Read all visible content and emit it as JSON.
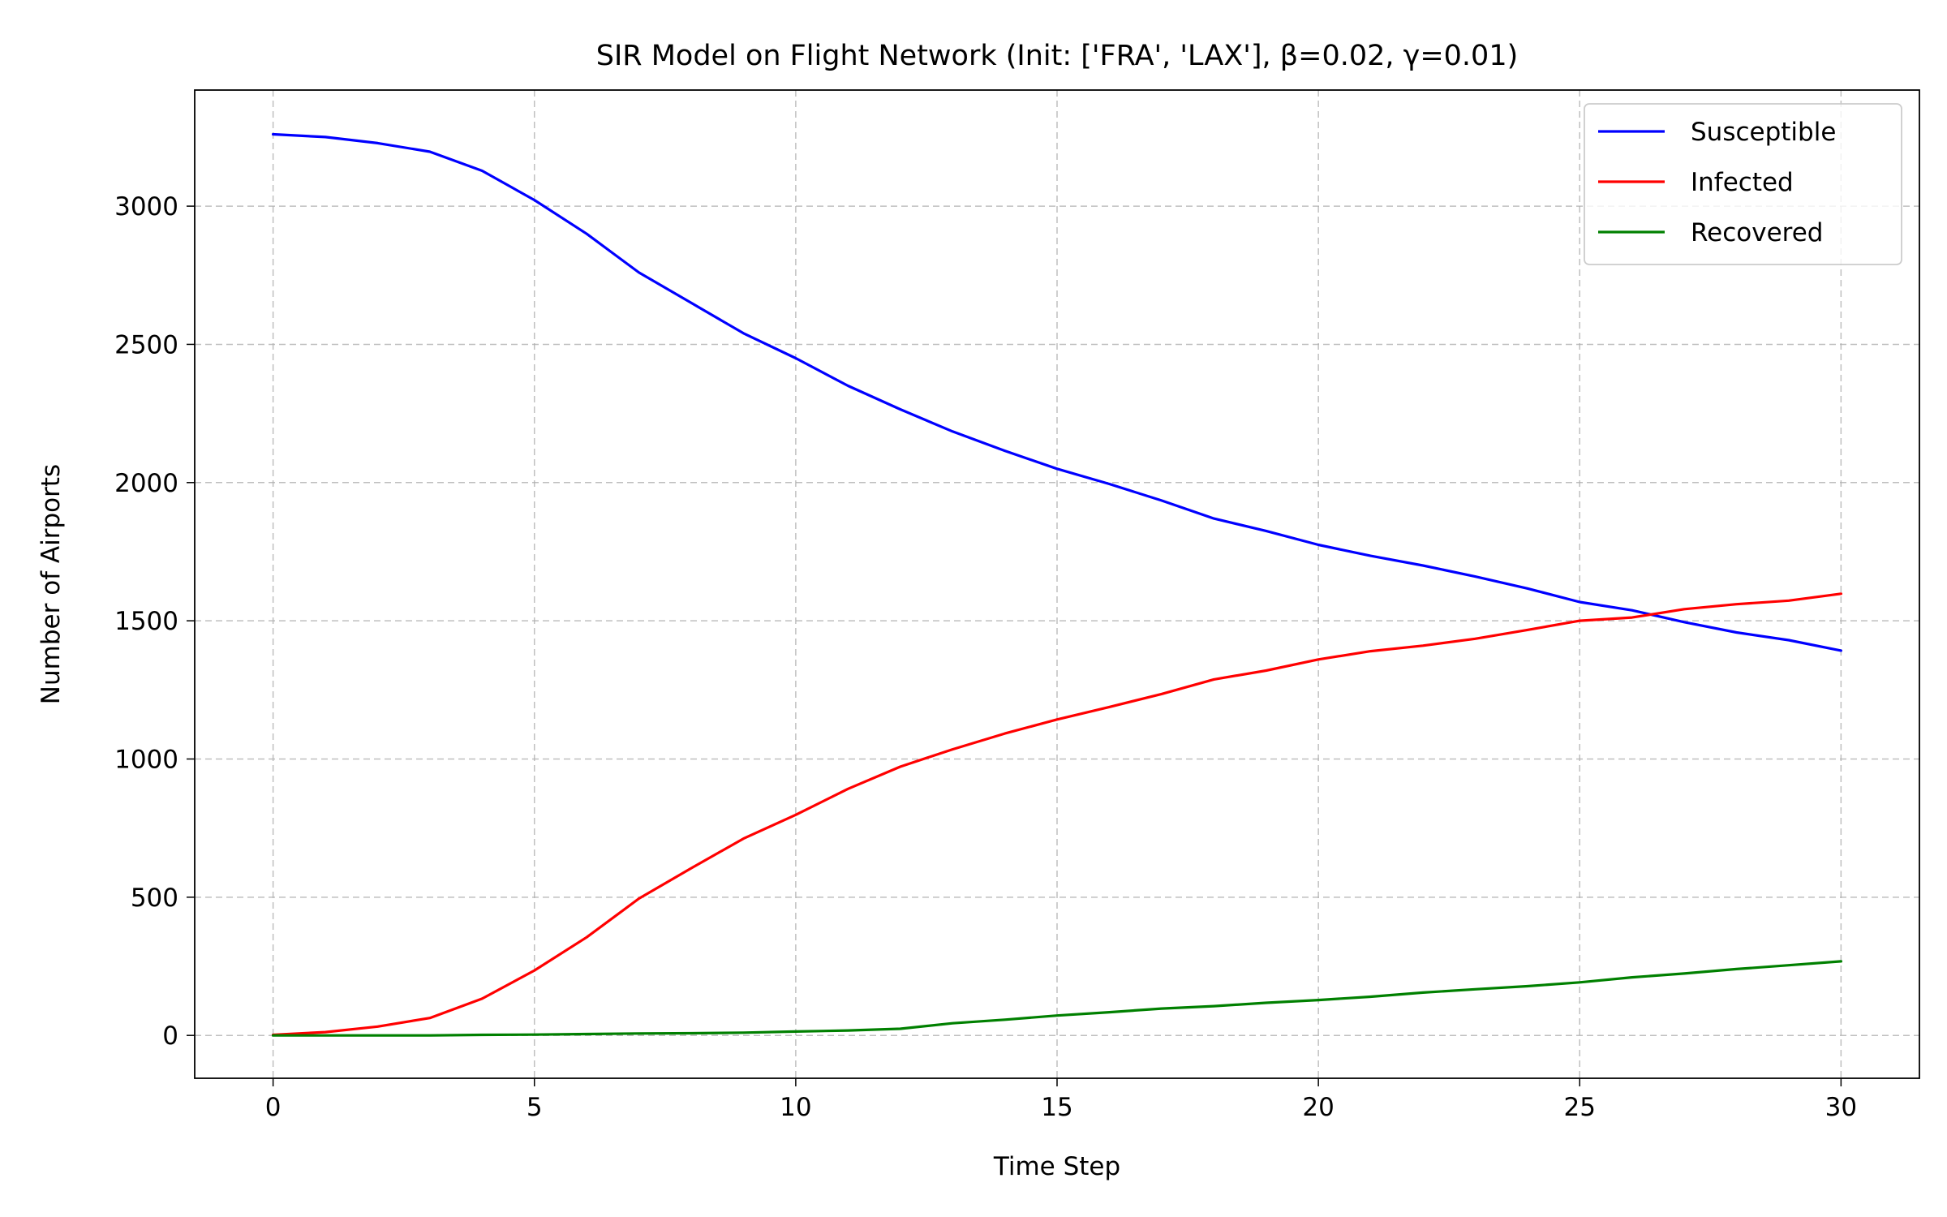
{
  "chart_data": {
    "type": "line",
    "title": "SIR Model on Flight Network (Init: ['FRA', 'LAX'], β=0.02, γ=0.01)",
    "xlabel": "Time Step",
    "ylabel": "Number of Airports",
    "xlim": [
      -1.5,
      31.5
    ],
    "ylim": [
      -155,
      3420
    ],
    "xticks": [
      0,
      5,
      10,
      15,
      20,
      25,
      30
    ],
    "yticks": [
      0,
      500,
      1000,
      1500,
      2000,
      2500,
      3000
    ],
    "grid": true,
    "legend_position": "top-right",
    "x": [
      0,
      1,
      2,
      3,
      4,
      5,
      6,
      7,
      8,
      9,
      10,
      11,
      12,
      13,
      14,
      15,
      16,
      17,
      18,
      19,
      20,
      21,
      22,
      23,
      24,
      25,
      26,
      27,
      28,
      29,
      30
    ],
    "series": [
      {
        "name": "Susceptible",
        "color": "#0000ff",
        "values": [
          3260,
          3250,
          3228,
          3197,
          3128,
          3022,
          2900,
          2760,
          2650,
          2540,
          2450,
          2350,
          2265,
          2185,
          2115,
          2050,
          1995,
          1935,
          1870,
          1825,
          1775,
          1735,
          1700,
          1660,
          1617,
          1568,
          1538,
          1495,
          1458,
          1430,
          1392
        ]
      },
      {
        "name": "Infected",
        "color": "#ff0000",
        "values": [
          2,
          12,
          32,
          63,
          133,
          235,
          355,
          495,
          605,
          712,
          798,
          892,
          972,
          1035,
          1092,
          1143,
          1188,
          1235,
          1288,
          1320,
          1360,
          1390,
          1410,
          1435,
          1467,
          1500,
          1512,
          1542,
          1560,
          1573,
          1598
        ]
      },
      {
        "name": "Recovered",
        "color": "#008000",
        "values": [
          0,
          0,
          0,
          0,
          2,
          3,
          5,
          7,
          8,
          10,
          14,
          18,
          24,
          44,
          57,
          72,
          84,
          97,
          106,
          118,
          128,
          140,
          155,
          167,
          178,
          192,
          210,
          224,
          240,
          254,
          268
        ]
      }
    ]
  }
}
